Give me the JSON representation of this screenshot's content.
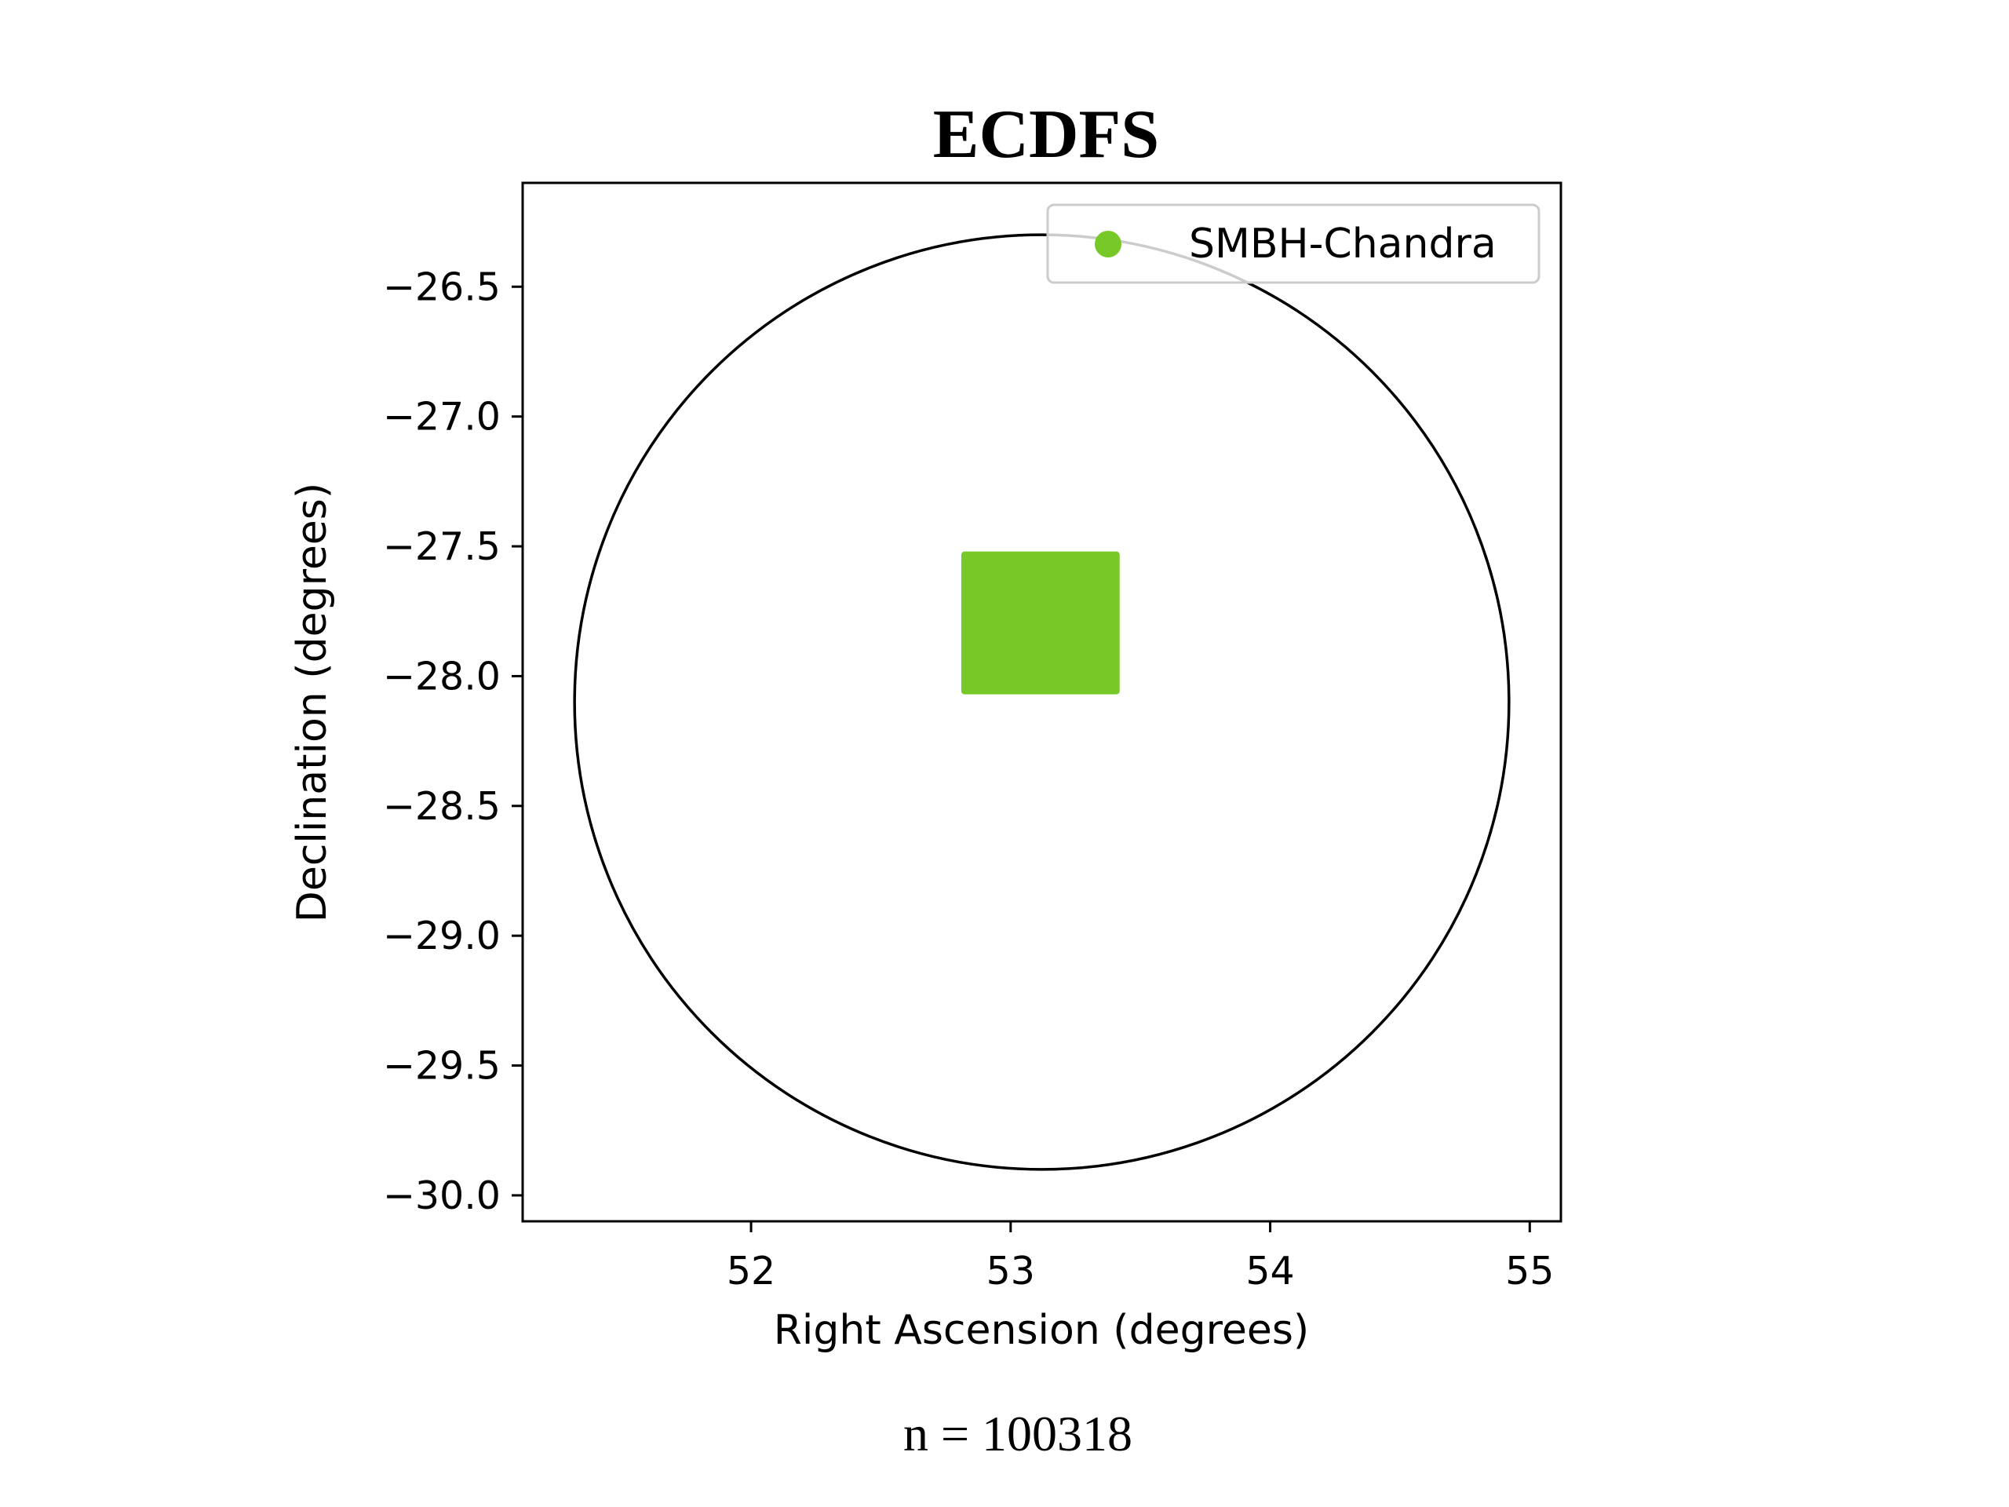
{
  "chart_data": {
    "type": "scatter",
    "title": "ECDFS",
    "xlabel": "Right Ascension (degrees)",
    "ylabel": "Declination (degrees)",
    "xlim": [
      51.12,
      55.12
    ],
    "ylim": [
      -30.1,
      -26.1
    ],
    "xticks": [
      52,
      53,
      54,
      55
    ],
    "xtick_labels": [
      "52",
      "53",
      "54",
      "55"
    ],
    "yticks": [
      -26.5,
      -27.0,
      -27.5,
      -28.0,
      -28.5,
      -29.0,
      -29.5,
      -30.0
    ],
    "ytick_labels": [
      "−26.5",
      "−27.0",
      "−27.5",
      "−28.0",
      "−28.5",
      "−29.0",
      "−29.5",
      "−30.0"
    ],
    "series": [
      {
        "name": "SMBH-Chandra",
        "color": "#77c928",
        "marker": "circle",
        "region": {
          "ra_min": 52.81,
          "ra_max": 53.42,
          "dec_min": -28.07,
          "dec_max": -27.52
        },
        "count": 100318
      }
    ],
    "circle": {
      "center_ra": 53.12,
      "center_dec": -28.1,
      "radius_deg": 1.8,
      "color": "#000000"
    },
    "legend": {
      "position": "top-right",
      "entries": [
        "SMBH-Chandra"
      ]
    },
    "footnote": "n = 100318",
    "grid": false
  }
}
